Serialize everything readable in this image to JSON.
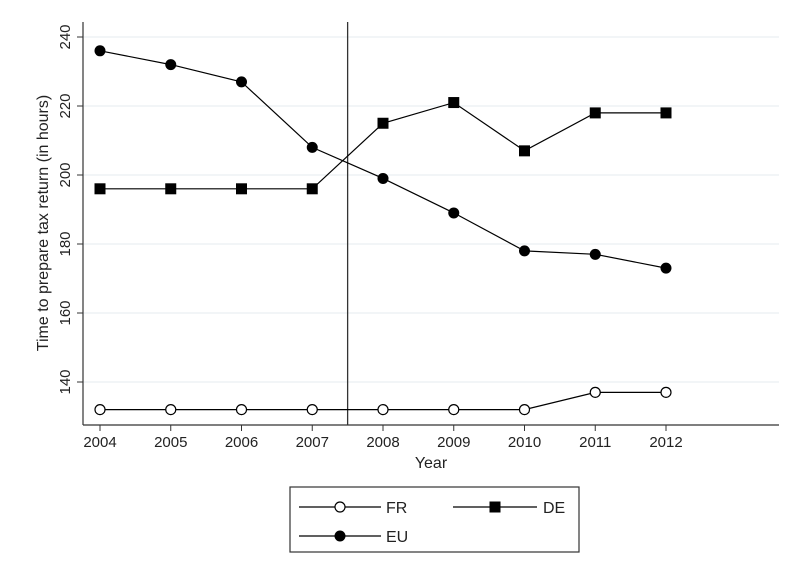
{
  "chart_data": {
    "type": "line",
    "xlabel": "Year",
    "ylabel": "Time to prepare tax return (in hours)",
    "x": [
      2004,
      2005,
      2006,
      2007,
      2008,
      2009,
      2010,
      2011,
      2012
    ],
    "xlim": [
      2004,
      2012
    ],
    "ylim": [
      130,
      242
    ],
    "yticks": [
      140,
      160,
      180,
      200,
      220,
      240
    ],
    "grid": true,
    "reference_line_x": 2007.5,
    "legend_position": "bottom",
    "series": [
      {
        "name": "FR",
        "marker": "hollow-circle",
        "color": "#000000",
        "values": [
          132,
          132,
          132,
          132,
          132,
          132,
          132,
          137,
          137
        ]
      },
      {
        "name": "DE",
        "marker": "filled-square",
        "color": "#000000",
        "values": [
          196,
          196,
          196,
          196,
          215,
          221,
          207,
          218,
          218
        ]
      },
      {
        "name": "EU",
        "marker": "filled-circle",
        "color": "#000000",
        "values": [
          236,
          232,
          227,
          208,
          199,
          189,
          178,
          177,
          173
        ]
      }
    ]
  }
}
